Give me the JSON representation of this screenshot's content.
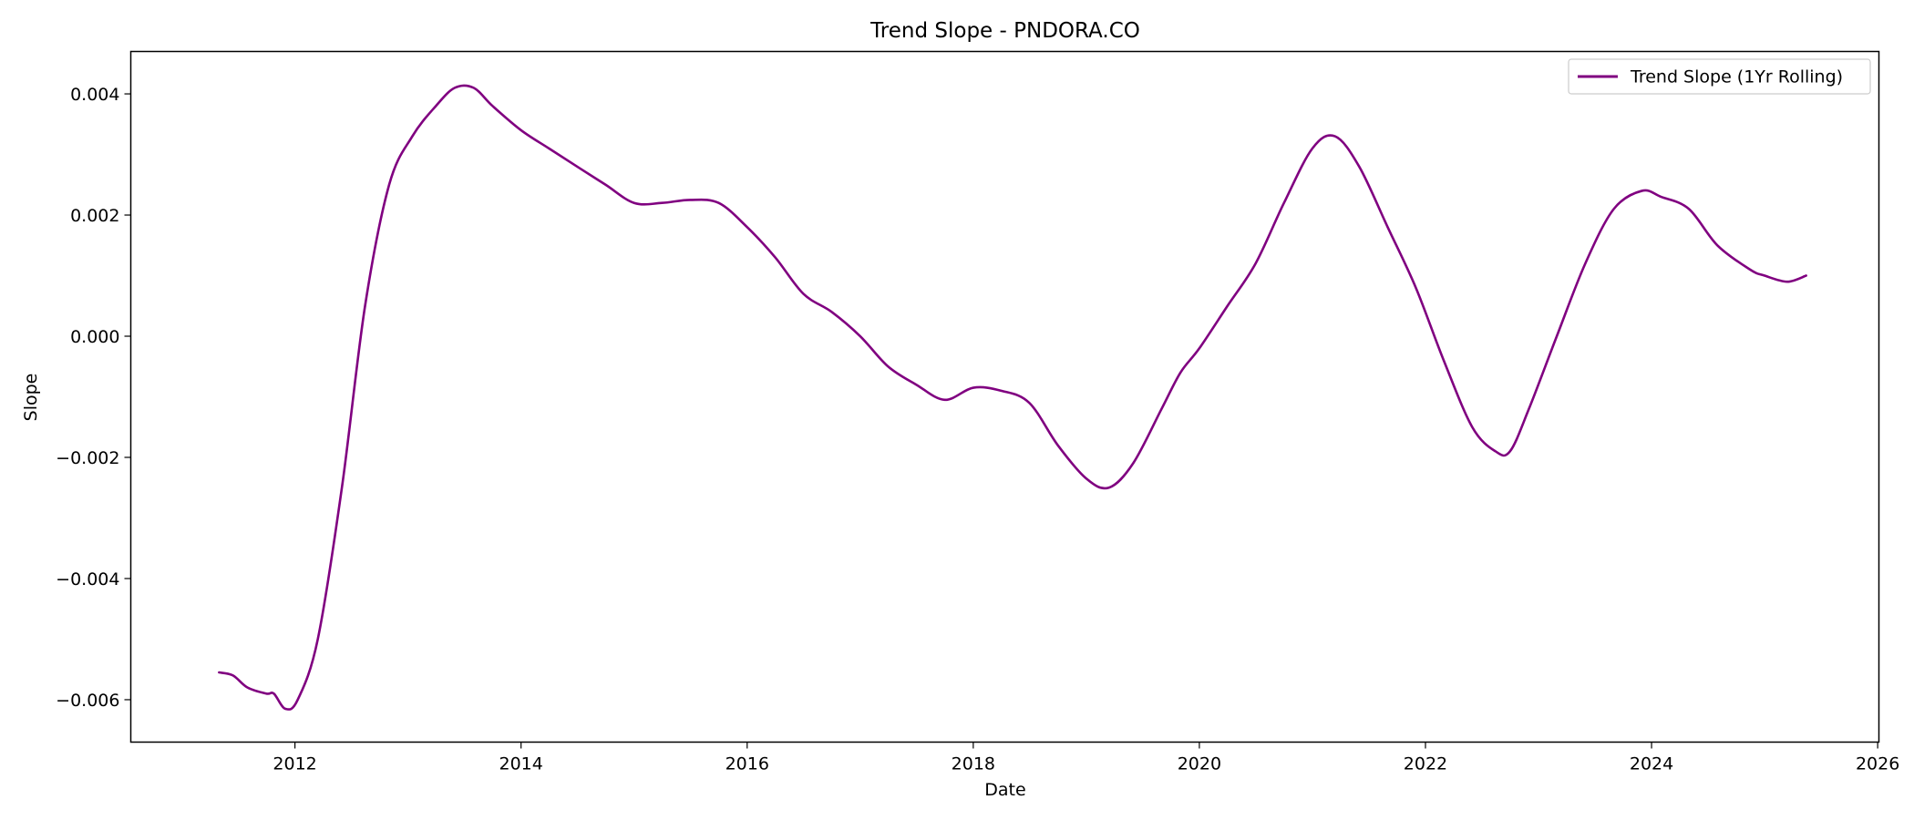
{
  "chart_data": {
    "type": "line",
    "title": "Trend Slope - PNDORA.CO",
    "xlabel": "Date",
    "ylabel": "Slope",
    "x_ticks": [
      "2012",
      "2014",
      "2016",
      "2018",
      "2020",
      "2022",
      "2024",
      "2026"
    ],
    "y_ticks": [
      "−0.006",
      "−0.004",
      "−0.002",
      "0.000",
      "0.002",
      "0.004"
    ],
    "xlim": [
      "2010-07-20",
      "2026-01-05"
    ],
    "ylim": [
      -0.0067,
      0.0047
    ],
    "grid": false,
    "legend_position": "top-right",
    "series": [
      {
        "name": "Trend Slope (1Yr Rolling)",
        "color": "#800080",
        "x": [
          "2011-05-01",
          "2011-06-15",
          "2011-08-01",
          "2011-10-01",
          "2011-10-25",
          "2011-12-01",
          "2012-01-10",
          "2012-03-15",
          "2012-06-01",
          "2012-08-15",
          "2012-11-01",
          "2013-01-15",
          "2013-04-01",
          "2013-06-01",
          "2013-08-01",
          "2013-10-01",
          "2014-01-01",
          "2014-04-01",
          "2014-07-01",
          "2014-10-01",
          "2015-01-01",
          "2015-04-01",
          "2015-07-01",
          "2015-10-01",
          "2016-01-01",
          "2016-04-01",
          "2016-07-01",
          "2016-10-01",
          "2017-01-01",
          "2017-04-01",
          "2017-07-01",
          "2017-10-01",
          "2018-01-01",
          "2018-04-01",
          "2018-07-01",
          "2018-10-01",
          "2019-01-01",
          "2019-03-15",
          "2019-06-01",
          "2019-09-01",
          "2019-11-01",
          "2020-01-01",
          "2020-04-01",
          "2020-07-01",
          "2020-10-01",
          "2021-01-01",
          "2021-03-15",
          "2021-06-01",
          "2021-09-01",
          "2021-12-01",
          "2022-03-01",
          "2022-06-01",
          "2022-08-15",
          "2022-10-01",
          "2022-12-01",
          "2023-03-01",
          "2023-06-01",
          "2023-09-01",
          "2023-12-01",
          "2024-02-01",
          "2024-05-01",
          "2024-08-01",
          "2024-11-15",
          "2025-01-01",
          "2025-03-15",
          "2025-05-15"
        ],
        "y": [
          -0.00555,
          -0.0056,
          -0.0058,
          -0.0059,
          -0.0059,
          -0.00615,
          -0.006,
          -0.005,
          -0.0025,
          0.0005,
          0.0025,
          0.0033,
          0.0038,
          0.0041,
          0.0041,
          0.0038,
          0.0034,
          0.0031,
          0.0028,
          0.0025,
          0.0022,
          0.0022,
          0.00225,
          0.0022,
          0.0018,
          0.0013,
          0.0007,
          0.0004,
          0.0,
          -0.0005,
          -0.0008,
          -0.00105,
          -0.00085,
          -0.0009,
          -0.0011,
          -0.0018,
          -0.00235,
          -0.0025,
          -0.0021,
          -0.0012,
          -0.0006,
          -0.0002,
          0.0005,
          0.0012,
          0.0022,
          0.0031,
          0.0033,
          0.0028,
          0.0018,
          0.0008,
          -0.0004,
          -0.0015,
          -0.0019,
          -0.0019,
          -0.0012,
          0.0,
          0.0012,
          0.0021,
          0.0024,
          0.0023,
          0.0021,
          0.0015,
          0.0011,
          0.001,
          0.0009,
          0.001
        ]
      }
    ]
  }
}
